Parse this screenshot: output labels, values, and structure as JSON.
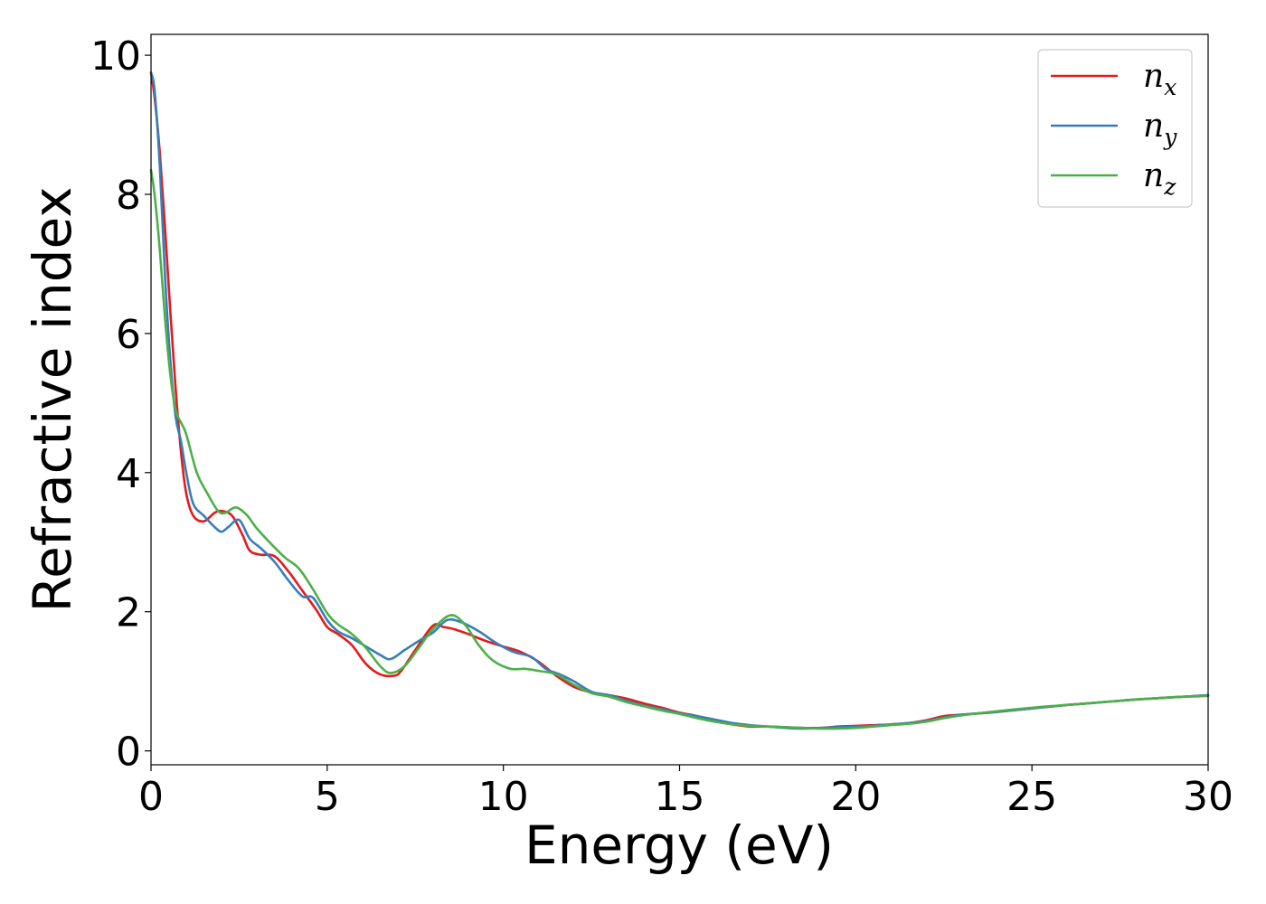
{
  "chart_data": {
    "type": "line",
    "title": "",
    "xlabel": "Energy (eV)",
    "ylabel": "Refractive index",
    "xlim": [
      0,
      30
    ],
    "ylim": [
      -0.2,
      10.3
    ],
    "xticks": [
      0,
      5,
      10,
      15,
      20,
      25,
      30
    ],
    "yticks": [
      0,
      2,
      4,
      6,
      8,
      10
    ],
    "grid": false,
    "legend_position": "top-right",
    "series": [
      {
        "name": "n",
        "subscript": "x",
        "color": "#e41a1c",
        "x": [
          0,
          0.1,
          0.25,
          0.4,
          0.55,
          0.7,
          0.85,
          1.0,
          1.2,
          1.5,
          1.8,
          2.0,
          2.3,
          2.6,
          2.8,
          3.1,
          3.5,
          3.9,
          4.3,
          4.7,
          5.0,
          5.3,
          5.7,
          6.1,
          6.5,
          6.9,
          7.1,
          7.5,
          8.0,
          8.3,
          8.6,
          9.0,
          9.5,
          10.0,
          10.5,
          11.0,
          11.5,
          12.0,
          12.5,
          13.0,
          13.5,
          14.0,
          14.5,
          15.0,
          15.5,
          16.0,
          16.5,
          17.0,
          17.5,
          18.0,
          18.5,
          19.0,
          19.5,
          20.0,
          20.5,
          21.0,
          21.5,
          22.0,
          22.5,
          23.0,
          24.0,
          25.0,
          26.0,
          27.0,
          28.0,
          29.0,
          30.0
        ],
        "values": [
          9.75,
          9.4,
          8.6,
          7.5,
          6.3,
          5.2,
          4.3,
          3.7,
          3.38,
          3.3,
          3.42,
          3.45,
          3.38,
          3.1,
          2.88,
          2.82,
          2.8,
          2.58,
          2.3,
          2.02,
          1.78,
          1.68,
          1.52,
          1.25,
          1.1,
          1.08,
          1.15,
          1.45,
          1.8,
          1.78,
          1.75,
          1.68,
          1.58,
          1.5,
          1.42,
          1.28,
          1.08,
          0.92,
          0.84,
          0.8,
          0.75,
          0.68,
          0.62,
          0.55,
          0.5,
          0.43,
          0.38,
          0.35,
          0.35,
          0.34,
          0.33,
          0.33,
          0.35,
          0.36,
          0.37,
          0.38,
          0.4,
          0.44,
          0.5,
          0.52,
          0.56,
          0.61,
          0.66,
          0.7,
          0.74,
          0.77,
          0.8
        ]
      },
      {
        "name": "n",
        "subscript": "y",
        "color": "#377eb8",
        "x": [
          0,
          0.1,
          0.25,
          0.4,
          0.55,
          0.7,
          0.85,
          1.0,
          1.2,
          1.5,
          1.8,
          2.0,
          2.2,
          2.5,
          2.8,
          3.1,
          3.5,
          3.9,
          4.3,
          4.6,
          5.0,
          5.3,
          5.7,
          6.1,
          6.5,
          6.8,
          7.2,
          7.6,
          8.0,
          8.4,
          8.8,
          9.3,
          9.8,
          10.3,
          10.8,
          11.2,
          11.6,
          12.0,
          12.5,
          13.0,
          13.5,
          14.0,
          14.5,
          15.0,
          15.5,
          16.0,
          16.5,
          17.0,
          17.5,
          18.0,
          18.5,
          19.0,
          19.5,
          20.0,
          20.5,
          21.0,
          21.5,
          22.0,
          22.5,
          23.0,
          24.0,
          25.0,
          26.0,
          27.0,
          28.0,
          29.0,
          30.0
        ],
        "values": [
          9.75,
          9.5,
          8.4,
          6.8,
          5.6,
          4.8,
          4.45,
          4.0,
          3.55,
          3.38,
          3.22,
          3.15,
          3.22,
          3.32,
          3.05,
          2.92,
          2.72,
          2.45,
          2.22,
          2.2,
          1.88,
          1.72,
          1.62,
          1.5,
          1.38,
          1.32,
          1.45,
          1.58,
          1.7,
          1.88,
          1.85,
          1.72,
          1.55,
          1.42,
          1.35,
          1.18,
          1.1,
          1.0,
          0.85,
          0.8,
          0.72,
          0.65,
          0.6,
          0.54,
          0.5,
          0.45,
          0.4,
          0.37,
          0.35,
          0.33,
          0.32,
          0.33,
          0.34,
          0.35,
          0.36,
          0.38,
          0.4,
          0.43,
          0.48,
          0.52,
          0.56,
          0.61,
          0.66,
          0.7,
          0.74,
          0.77,
          0.8
        ]
      },
      {
        "name": "n",
        "subscript": "z",
        "color": "#4daf4a",
        "x": [
          0,
          0.1,
          0.25,
          0.4,
          0.55,
          0.7,
          0.85,
          1.0,
          1.3,
          1.6,
          1.9,
          2.1,
          2.4,
          2.7,
          3.0,
          3.4,
          3.8,
          4.2,
          4.6,
          5.0,
          5.3,
          5.7,
          6.1,
          6.5,
          6.8,
          7.2,
          7.6,
          8.0,
          8.5,
          8.9,
          9.3,
          9.7,
          10.2,
          10.6,
          11.0,
          11.5,
          12.0,
          12.5,
          13.0,
          13.5,
          14.0,
          14.5,
          15.0,
          15.5,
          16.0,
          16.5,
          17.0,
          17.5,
          18.0,
          18.5,
          19.0,
          19.5,
          20.0,
          20.5,
          21.0,
          21.5,
          22.0,
          22.5,
          23.0,
          24.0,
          25.0,
          26.0,
          27.0,
          28.0,
          29.0,
          30.0
        ],
        "values": [
          8.35,
          8.0,
          7.2,
          6.2,
          5.4,
          4.9,
          4.72,
          4.55,
          4.0,
          3.7,
          3.45,
          3.42,
          3.5,
          3.4,
          3.2,
          2.98,
          2.78,
          2.62,
          2.32,
          1.98,
          1.82,
          1.68,
          1.48,
          1.22,
          1.12,
          1.22,
          1.48,
          1.75,
          1.95,
          1.82,
          1.52,
          1.3,
          1.18,
          1.18,
          1.15,
          1.1,
          0.95,
          0.83,
          0.78,
          0.7,
          0.64,
          0.58,
          0.53,
          0.47,
          0.42,
          0.38,
          0.36,
          0.35,
          0.34,
          0.33,
          0.32,
          0.32,
          0.33,
          0.35,
          0.37,
          0.39,
          0.42,
          0.47,
          0.51,
          0.57,
          0.62,
          0.66,
          0.7,
          0.74,
          0.77,
          0.79
        ]
      }
    ]
  }
}
